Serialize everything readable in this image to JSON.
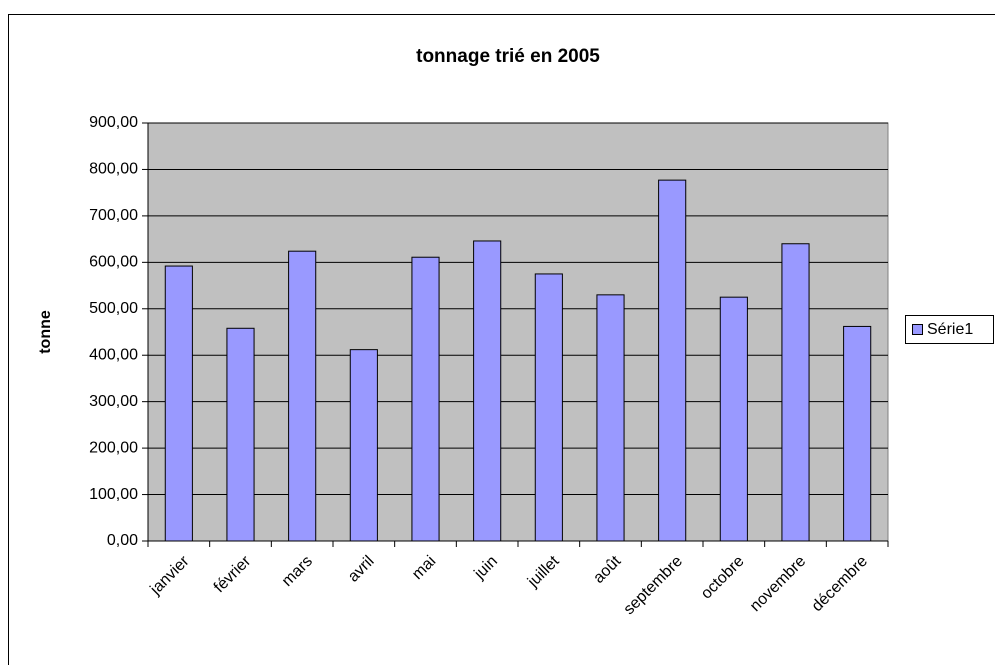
{
  "chart_data": {
    "type": "bar",
    "title": "tonnage trié en 2005",
    "y_label": "tonne",
    "categories": [
      "janvier",
      "février",
      "mars",
      "avril",
      "mai",
      "juin",
      "juillet",
      "août",
      "septembre",
      "octobre",
      "novembre",
      "décembre"
    ],
    "series": [
      {
        "name": "Série1",
        "color": "#9999ff",
        "values": [
          592,
          458,
          624,
          412,
          611,
          646,
          575,
          530,
          777,
          525,
          640,
          462
        ]
      }
    ],
    "ylim": [
      0,
      900
    ],
    "yticks": [
      {
        "value": 0,
        "label": "0,00"
      },
      {
        "value": 100,
        "label": "100,00"
      },
      {
        "value": 200,
        "label": "200,00"
      },
      {
        "value": 300,
        "label": "300,00"
      },
      {
        "value": 400,
        "label": "400,00"
      },
      {
        "value": 500,
        "label": "500,00"
      },
      {
        "value": 600,
        "label": "600,00"
      },
      {
        "value": 700,
        "label": "700,00"
      },
      {
        "value": 800,
        "label": "800,00"
      },
      {
        "value": 900,
        "label": "900,00"
      }
    ],
    "grid": true,
    "plot_background": "#c0c0c0",
    "legend": "right"
  }
}
